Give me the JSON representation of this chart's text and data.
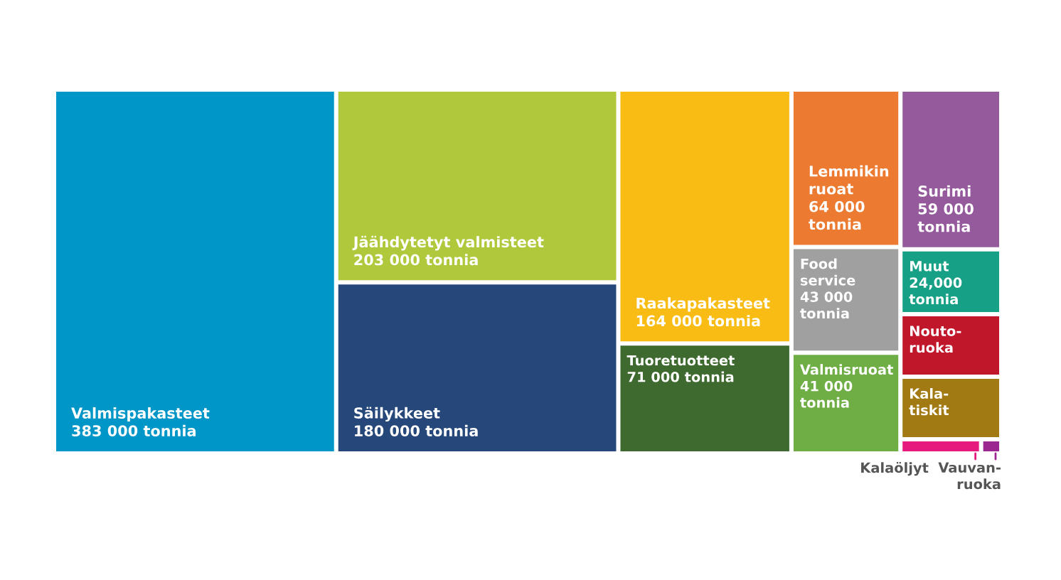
{
  "chart_data": {
    "type": "other",
    "categories": [
      "Valmispakasteet",
      "Jäähdytetyt valmisteet",
      "Säilykkeet",
      "Raakapakasteet",
      "Tuoretuotteet",
      "Lemmikin\nruoat",
      "Food\nservice",
      "Valmisruoat",
      "Surimi",
      "Muut",
      "Nouto-\nruoka",
      "Kala-\ntiskit",
      "Kalaöljyt",
      "Vauvan-\nruoka"
    ],
    "values": [
      383000,
      203000,
      180000,
      164000,
      71000,
      64000,
      43000,
      41000,
      59000,
      24000,
      null,
      null,
      null,
      null
    ],
    "value_labels": [
      "383 000 tonnia",
      "203 000 tonnia",
      "180 000 tonnia",
      "164 000 tonnia",
      "71 000 tonnia",
      "64 000\ntonnia",
      "43 000\ntonnia",
      "41 000\ntonnia",
      "59 000\ntonnia",
      "24,000\ntonnia",
      null,
      null,
      null,
      null
    ],
    "colors": [
      "#0096c8",
      "#afc83c",
      "#25477a",
      "#f9bc15",
      "#3e6a2f",
      "#ec7b31",
      "#a0a0a0",
      "#6fad45",
      "#955a9c",
      "#16a085",
      "#c0172b",
      "#a27a14",
      "#e6197d",
      "#9b2890"
    ]
  }
}
